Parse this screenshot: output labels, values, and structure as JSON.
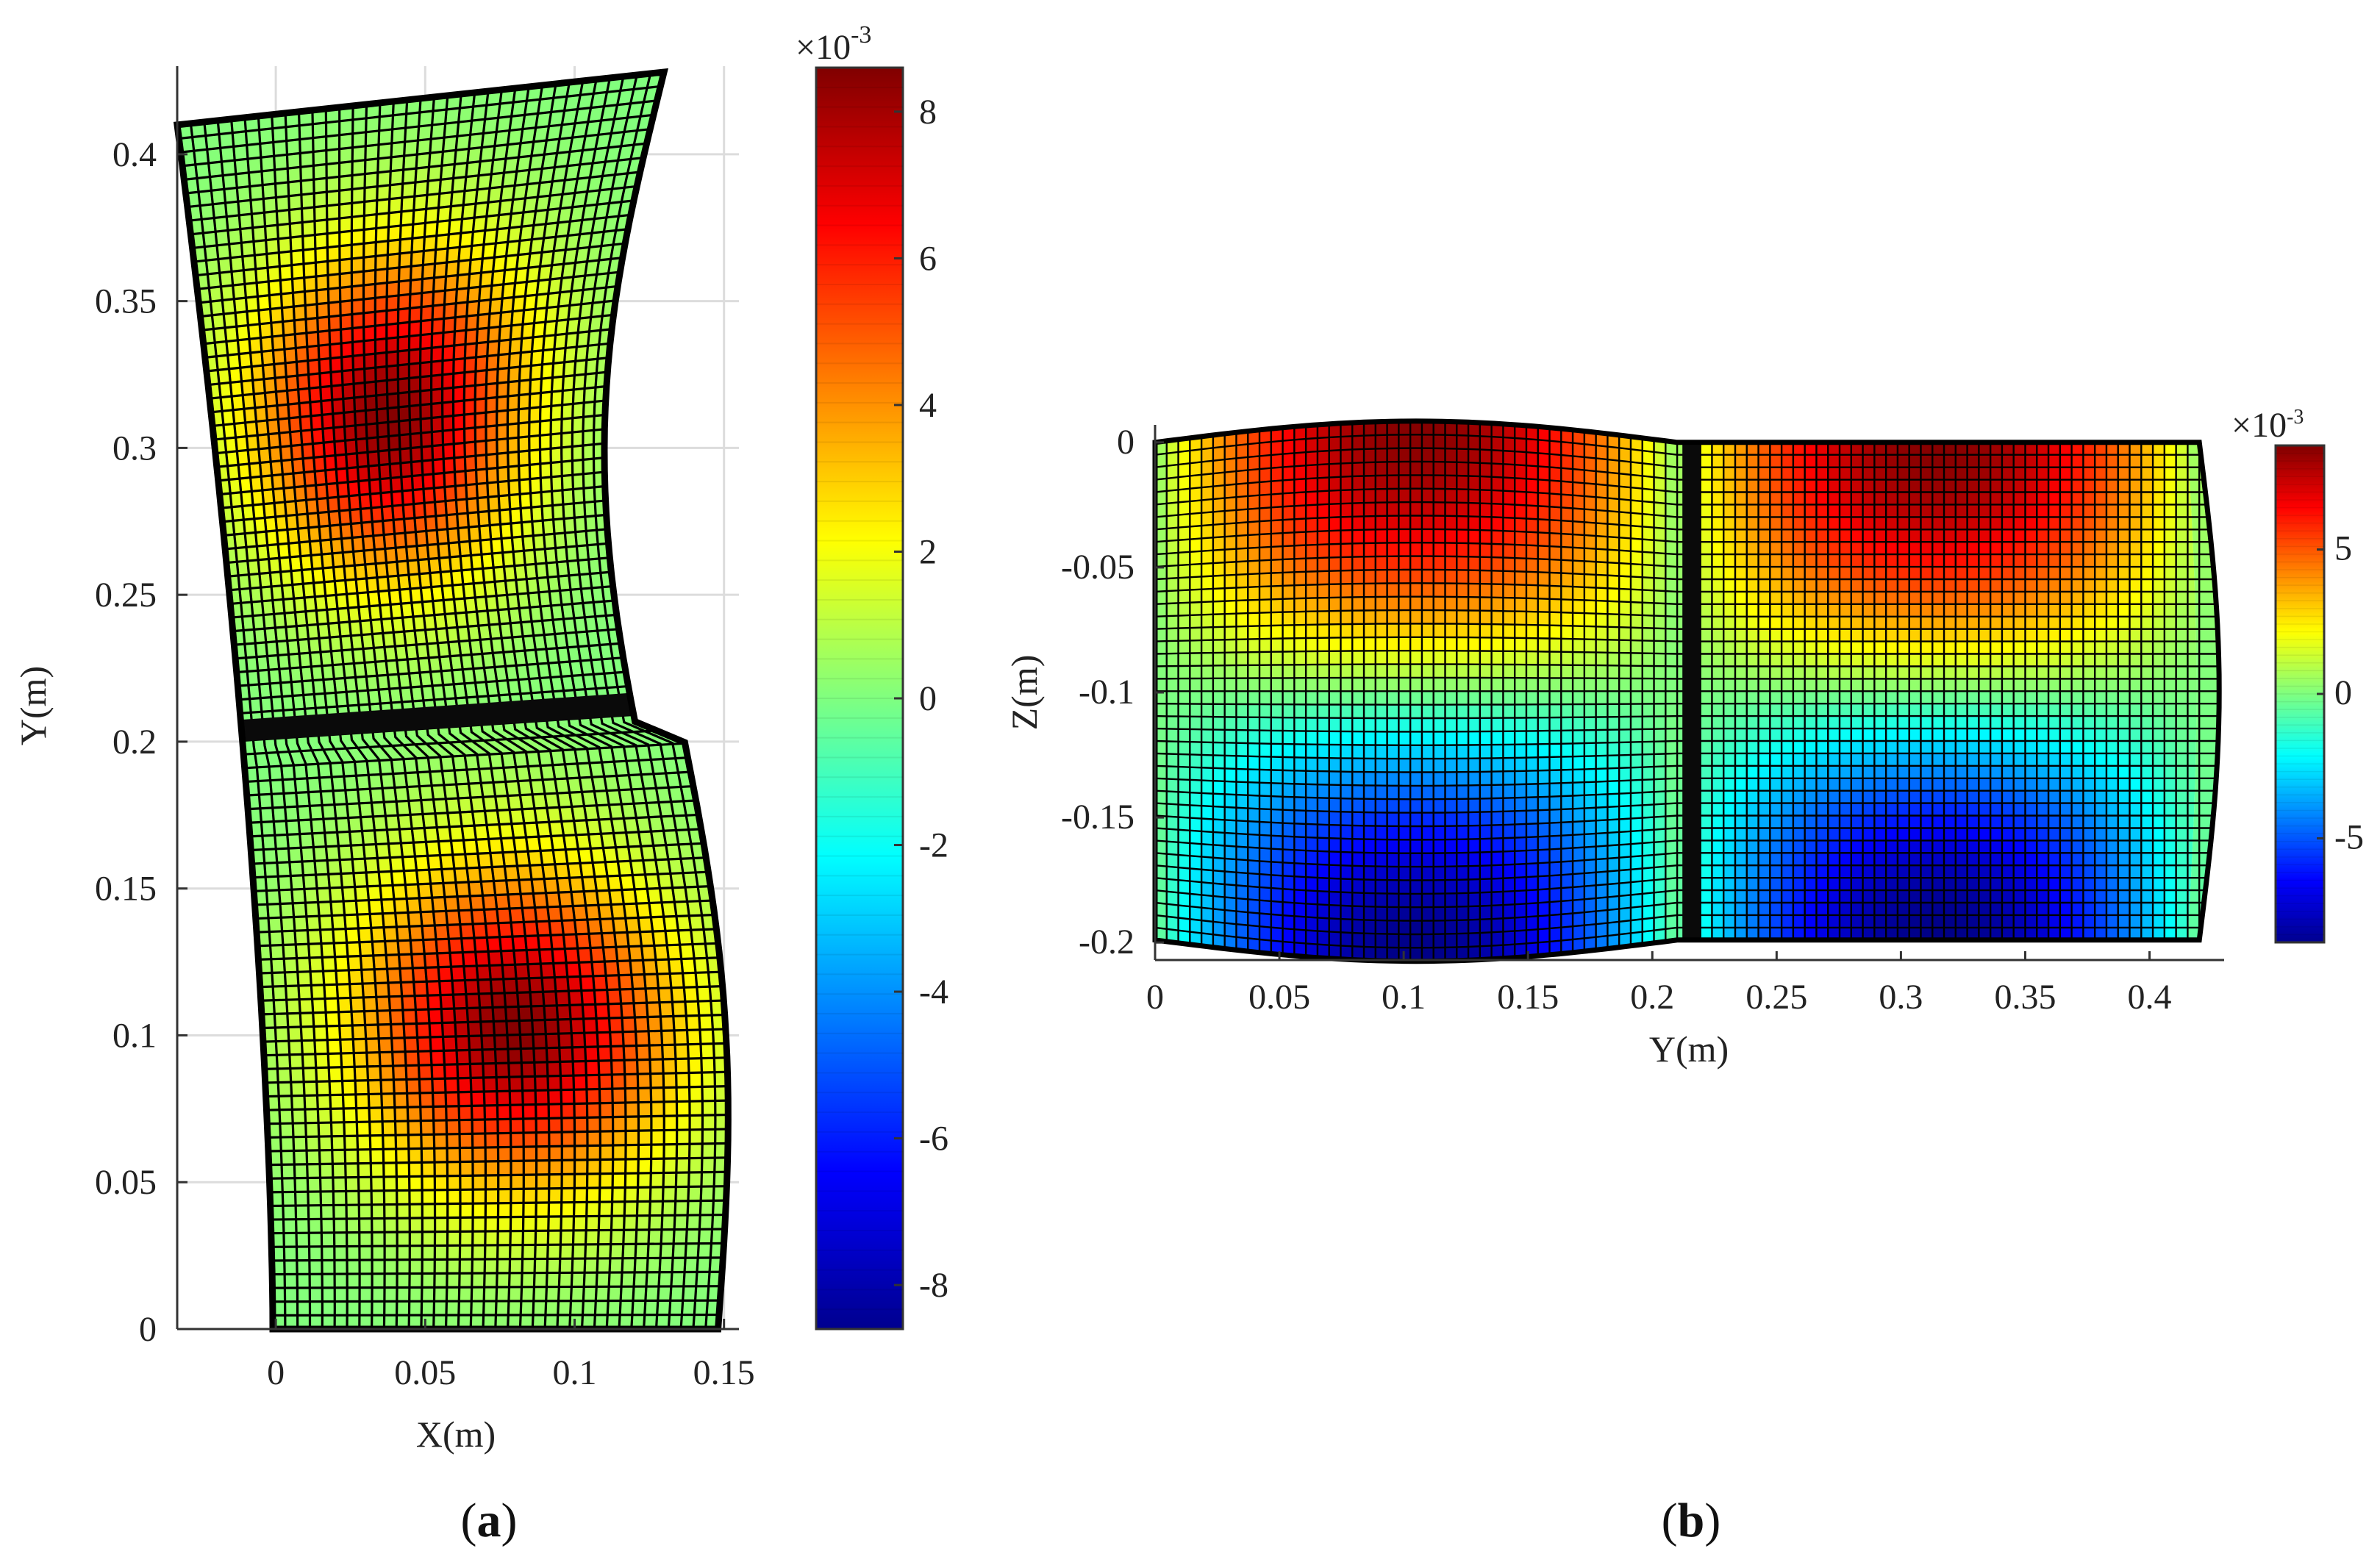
{
  "chart_data": [
    {
      "type": "heatmap",
      "panel_caption": [
        "(",
        "a",
        ")"
      ],
      "xlabel": "X(m)",
      "ylabel": "Y(m)",
      "xlim": [
        -0.033,
        0.155
      ],
      "ylim": [
        0,
        0.43
      ],
      "x_ticks": [
        "0",
        "0.05",
        "0.1",
        "0.15"
      ],
      "x_tick_values": [
        0,
        0.05,
        0.1,
        0.15
      ],
      "y_ticks": [
        "0",
        "0.05",
        "0.1",
        "0.15",
        "0.2",
        "0.25",
        "0.3",
        "0.35",
        "0.4"
      ],
      "y_tick_values": [
        0,
        0.05,
        0.1,
        0.15,
        0.2,
        0.25,
        0.3,
        0.35,
        0.4
      ],
      "grid": true,
      "colormap": "jet",
      "peaks": [
        {
          "x": 0.07,
          "y": 0.104,
          "value": 0.0085
        },
        {
          "x": 0.055,
          "y": 0.318,
          "value": 0.0085
        }
      ],
      "colorbar": {
        "exponent_label": "×10",
        "exponent_power": "-3",
        "range": [
          -8.6,
          8.6
        ],
        "ticks": [
          "8",
          "6",
          "4",
          "2",
          "0",
          "-2",
          "-4",
          "-6",
          "-8"
        ],
        "tick_values": [
          8,
          6,
          4,
          2,
          0,
          -2,
          -4,
          -6,
          -8
        ]
      }
    },
    {
      "type": "heatmap",
      "panel_caption": [
        "(",
        "b",
        ")"
      ],
      "xlabel": "Y(m)",
      "ylabel": "Z(m)",
      "xlim": [
        0,
        0.43
      ],
      "ylim": [
        -0.207,
        0.007
      ],
      "x_ticks": [
        "0",
        "0.05",
        "0.1",
        "0.15",
        "0.2",
        "0.25",
        "0.3",
        "0.35",
        "0.4"
      ],
      "x_tick_values": [
        0,
        0.05,
        0.1,
        0.15,
        0.2,
        0.25,
        0.3,
        0.35,
        0.4
      ],
      "y_ticks": [
        "0",
        "-0.05",
        "-0.1",
        "-0.15",
        "-0.2"
      ],
      "y_tick_values": [
        0,
        -0.05,
        -0.1,
        -0.15,
        -0.2
      ],
      "grid": false,
      "colormap": "jet",
      "peaks": [
        {
          "y": 0.1,
          "z": 0.0,
          "value": 0.0085
        },
        {
          "y": 0.31,
          "z": 0.0,
          "value": 0.0085
        },
        {
          "y": 0.1,
          "z": -0.2,
          "value": -0.0085
        },
        {
          "y": 0.31,
          "z": -0.2,
          "value": -0.0085
        }
      ],
      "colorbar": {
        "exponent_label": "×10",
        "exponent_power": "-3",
        "range": [
          -8.6,
          8.6
        ],
        "ticks": [
          "5",
          "0",
          "-5"
        ],
        "tick_values": [
          5,
          0,
          -5
        ]
      }
    }
  ]
}
